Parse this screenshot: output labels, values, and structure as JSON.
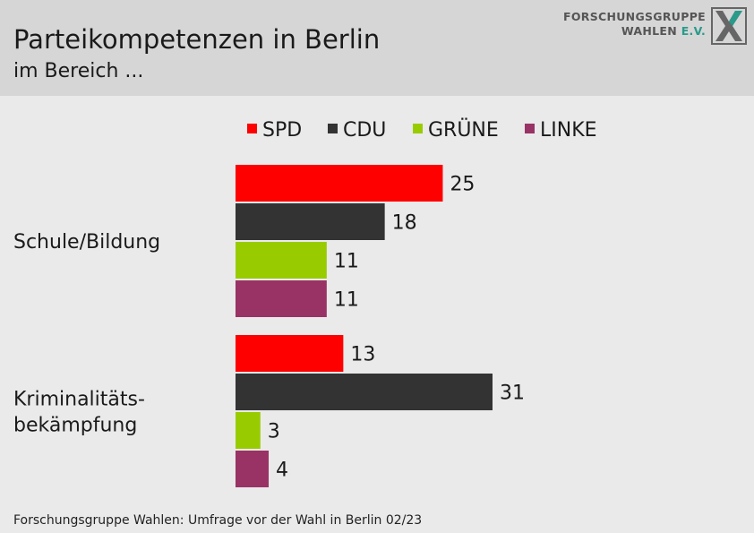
{
  "header": {
    "title": "Parteikompetenzen in Berlin",
    "subtitle": "im Bereich ...",
    "logo": {
      "line1": "FORSCHUNGSGRUPPE",
      "line2_main": "WAHLEN",
      "line2_accent": "E.V."
    }
  },
  "chart_data": {
    "type": "bar",
    "orientation": "horizontal",
    "categories": [
      "Schule/Bildung",
      "Kriminalitäts-\nbekämpfung"
    ],
    "series": [
      {
        "name": "SPD",
        "color": "#ff0000",
        "values": [
          25,
          13
        ]
      },
      {
        "name": "CDU",
        "color": "#333333",
        "values": [
          18,
          31
        ]
      },
      {
        "name": "GRÜNE",
        "color": "#99cc00",
        "values": [
          11,
          3
        ]
      },
      {
        "name": "LINKE",
        "color": "#993366",
        "values": [
          11,
          4
        ]
      }
    ],
    "legend_position": "top",
    "data_labels": true
  },
  "footer": {
    "source": "Forschungsgruppe Wahlen: Umfrage vor der Wahl in Berlin 02/23"
  }
}
